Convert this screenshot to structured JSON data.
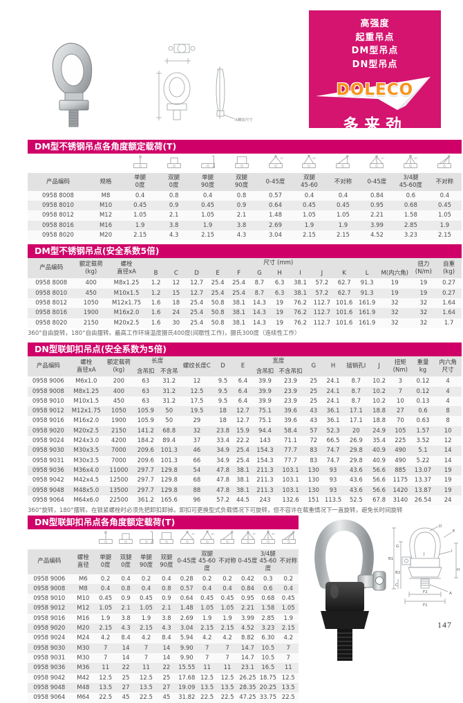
{
  "page": {
    "number": "147"
  },
  "colors": {
    "section_bar": "#cf0068",
    "panel_bg": "#d4146f",
    "logo_orange": "#f7941d",
    "logo_arrow": "#ffffff",
    "header_bg": "#e2e2e2",
    "row_stripe": "#ebebeb"
  },
  "brand": {
    "lines": [
      "高强度",
      "起重吊点",
      "DM型吊点",
      "DN型吊点"
    ],
    "logo_text": "DOLECO",
    "logo_cn": "多来劲"
  },
  "diagrams": {
    "dm": {
      "label": "A螺纹尺寸"
    },
    "dn": {
      "labels": [
        "D",
        "E",
        "G",
        "B1",
        "I",
        "B2",
        "H",
        "J",
        "C",
        "A",
        "F2",
        "F1"
      ]
    }
  },
  "tables": {
    "dm_angle": {
      "title": "DM型不锈钢吊点各角度额定载荷(T)",
      "icon_lead_cols": 2,
      "icons": [
        "sling-single-leg-0-icon",
        "sling-double-leg-0-icon",
        "sling-single-leg-90-icon",
        "sling-double-leg-90-icon",
        "sling-double-leg-0-45-icon",
        "sling-double-leg-45-60-icon",
        "sling-asymmetric-icon",
        "sling-34leg-0-45-icon",
        "sling-34leg-45-60-icon",
        "sling-34leg-asymmetric-icon"
      ],
      "widths": [
        14,
        8,
        7.8,
        7.8,
        7.8,
        7.8,
        7.8,
        7.8,
        7.8,
        7.8,
        7.8,
        7.8
      ],
      "header": [
        [
          {
            "t": "产品编码"
          },
          {
            "t": "规格"
          },
          {
            "t": "单腿\n0度"
          },
          {
            "t": "双腿\n0度"
          },
          {
            "t": "单腿\n90度"
          },
          {
            "t": "双腿\n90度"
          },
          {
            "t": "0-45度"
          },
          {
            "t": "双腿\n45-60"
          },
          {
            "t": "不对称"
          },
          {
            "t": "0-45度"
          },
          {
            "t": "3/4腿\n45-60度"
          },
          {
            "t": "不对称"
          }
        ]
      ],
      "rows": [
        [
          "0958 8008",
          "M8",
          "0.4",
          "0.8",
          "0.4",
          "0.8",
          "0.57",
          "0.4",
          "0.4",
          "0.84",
          "0.6",
          "0.4"
        ],
        [
          "0958 8010",
          "M10",
          "0.45",
          "0.9",
          "0.45",
          "0.9",
          "0.64",
          "0.45",
          "0.45",
          "0.95",
          "0.68",
          "0.45"
        ],
        [
          "0958 8012",
          "M12",
          "1.05",
          "2.1",
          "1.05",
          "2.1",
          "1.48",
          "1.05",
          "1.05",
          "2.21",
          "1.58",
          "1.05"
        ],
        [
          "0958 8016",
          "M16",
          "1.9",
          "3.8",
          "1.9",
          "3.8",
          "2.69",
          "1.9",
          "1.9",
          "3.99",
          "2.85",
          "1.9"
        ],
        [
          "0958 8020",
          "M20",
          "2.15",
          "4.3",
          "2.15",
          "4.3",
          "3.04",
          "2.15",
          "2.15",
          "4.52",
          "3.23",
          "2.15"
        ]
      ]
    },
    "dm_dims": {
      "title": "DM型不锈钢吊点(安全系数5倍)",
      "widths": [
        11,
        7.5,
        9,
        4.7,
        4.7,
        4.9,
        4.9,
        4.9,
        4.7,
        4.7,
        4.9,
        5.2,
        5.2,
        5.4,
        7.5,
        5.9,
        5.9
      ],
      "header": [
        [
          {
            "t": "产品编码",
            "rs": 2
          },
          {
            "t": "额定载荷\n(kg)",
            "rs": 2
          },
          {
            "t": "螺栓\n直径xA",
            "rs": 2
          },
          {
            "t": "尺寸 (mm)",
            "cs": 12
          },
          {
            "t": "扭力\n(N/m)",
            "rs": 2
          },
          {
            "t": "自重\n(kg)",
            "rs": 2
          }
        ],
        [
          {
            "t": "B"
          },
          {
            "t": "C"
          },
          {
            "t": "D"
          },
          {
            "t": "E"
          },
          {
            "t": "F"
          },
          {
            "t": "G"
          },
          {
            "t": "H"
          },
          {
            "t": "I"
          },
          {
            "t": "J"
          },
          {
            "t": "K"
          },
          {
            "t": "L"
          },
          {
            "t": "M(内六角)"
          }
        ]
      ],
      "rows": [
        [
          "0958 8008",
          "400",
          "M8x1.25",
          "1.2",
          "12",
          "12.7",
          "25.4",
          "25.4",
          "8.7",
          "6.3",
          "38.1",
          "57.2",
          "62.7",
          "91.3",
          "19",
          "19",
          "0.27"
        ],
        [
          "0958 8010",
          "450",
          "M10x1.5",
          "1.2",
          "15",
          "12.7",
          "25.4",
          "25.4",
          "8.7",
          "6.3",
          "38.1",
          "57.2",
          "62.7",
          "91.3",
          "19",
          "19",
          "0.27"
        ],
        [
          "0958 8012",
          "1050",
          "M12x1.75",
          "1.6",
          "18",
          "25.4",
          "50.8",
          "38.1",
          "14.3",
          "19",
          "76.2",
          "112.7",
          "101.6",
          "161.9",
          "32",
          "32",
          "1.64"
        ],
        [
          "0958 8016",
          "1900",
          "M16x2.0",
          "1.6",
          "24",
          "25.4",
          "50.8",
          "38.1",
          "14.3",
          "19",
          "76.2",
          "112.7",
          "101.6",
          "161.9",
          "32",
          "32",
          "1.64"
        ],
        [
          "0958 8020",
          "2150",
          "M20x2.5",
          "1.6",
          "30",
          "25.4",
          "50.8",
          "38.1",
          "14.3",
          "19",
          "76.2",
          "112.7",
          "101.6",
          "161.9",
          "32",
          "32",
          "1.7"
        ]
      ],
      "note": "360°自由旋转，180°自由摆转。最高工作环境温度摄氏400度(间歇性工作)，摄氏300度（连续性工作）"
    },
    "dn_dims": {
      "title": "DN型联卸扣吊点(安全系数为5倍)",
      "widths": [
        9.5,
        8,
        7,
        5.4,
        5.4,
        7.4,
        4.6,
        4.6,
        5.6,
        6.2,
        4.4,
        4.6,
        6,
        4.6,
        5.2,
        5.2,
        6.3
      ],
      "header": [
        [
          {
            "t": "产品编码",
            "rs": 2
          },
          {
            "t": "螺栓\n直径xA",
            "rs": 2
          },
          {
            "t": "额定载荷\n(kg)",
            "rs": 2
          },
          {
            "t": "长度",
            "cs": 2
          },
          {
            "t": "螺纹长度C",
            "rs": 2
          },
          {
            "t": "D",
            "rs": 2
          },
          {
            "t": "E",
            "rs": 2
          },
          {
            "t": "宽度",
            "cs": 2
          },
          {
            "t": "G",
            "rs": 2
          },
          {
            "t": "H",
            "rs": 2
          },
          {
            "t": "插销孔I",
            "rs": 2
          },
          {
            "t": "J",
            "rs": 2
          },
          {
            "t": "扭矩\n(Nm)",
            "rs": 2
          },
          {
            "t": "重量\nkg",
            "rs": 2
          },
          {
            "t": "内六角\n尺寸",
            "rs": 2
          }
        ],
        [
          {
            "t": "含吊扣"
          },
          {
            "t": "不含吊"
          },
          {
            "t": "含吊扣"
          },
          {
            "t": "不含吊扣"
          }
        ]
      ],
      "rows": [
        [
          "0958 9006",
          "M6x1.0",
          "200",
          "63",
          "31.2",
          "12",
          "9.5",
          "6.4",
          "39.9",
          "23.9",
          "25",
          "24.1",
          "8.7",
          "10.2",
          "3",
          "0.12",
          "4"
        ],
        [
          "0958 9008",
          "M8x1.25",
          "400",
          "63",
          "31.2",
          "12.5",
          "9.5",
          "6.4",
          "39.9",
          "23.9",
          "25",
          "24.1",
          "8.7",
          "10.2",
          "7",
          "0.12",
          "4"
        ],
        [
          "0958 9010",
          "M10x1.5",
          "450",
          "63",
          "31.2",
          "17.5",
          "9.5",
          "6.4",
          "39.9",
          "23.9",
          "25",
          "24.1",
          "8.7",
          "10.2",
          "10",
          "0.13",
          "4"
        ],
        [
          "0958 9012",
          "M12x1.75",
          "1050",
          "105.9",
          "50",
          "19.5",
          "18",
          "12.7",
          "75.1",
          "39.6",
          "43",
          "36.1",
          "17.1",
          "18.8",
          "27",
          "0.6",
          "8"
        ],
        [
          "0958 9016",
          "M16x2.0",
          "1900",
          "105.9",
          "50",
          "29",
          "18",
          "12.7",
          "75.1",
          "39.6",
          "43",
          "36.1",
          "17.1",
          "18.8",
          "70",
          "0.63",
          "8"
        ],
        [
          "0958 9020",
          "M20x2.5",
          "2150",
          "141.2",
          "68.8",
          "32",
          "23.8",
          "15.9",
          "94.4",
          "58.4",
          "57",
          "52.3",
          "20",
          "24.9",
          "105",
          "1.57",
          "10"
        ],
        [
          "0958 9024",
          "M24x3.0",
          "4200",
          "184.2",
          "89.4",
          "37",
          "33.4",
          "22.2",
          "143",
          "71.1",
          "72",
          "66.5",
          "26.9",
          "35.4",
          "225",
          "3.52",
          "12"
        ],
        [
          "0958 9030",
          "M30x3.5",
          "7000",
          "209.6",
          "101.3",
          "46",
          "34.9",
          "25.4",
          "154.3",
          "77.7",
          "83",
          "74.7",
          "29.8",
          "40.9",
          "490",
          "5.1",
          "14"
        ],
        [
          "0958 9031",
          "M30x3.5",
          "7000",
          "209.6",
          "101.3",
          "66",
          "34.9",
          "25.4",
          "154.3",
          "77.7",
          "83",
          "74.7",
          "29.8",
          "40.9",
          "490",
          "5.22",
          "14"
        ],
        [
          "0958 9036",
          "M36x4.0",
          "11000",
          "297.7",
          "129.8",
          "54",
          "47.8",
          "38.1",
          "211.3",
          "103.1",
          "130",
          "93",
          "43.6",
          "56.6",
          "885",
          "13.07",
          "19"
        ],
        [
          "0958 9042",
          "M42x4.5",
          "12500",
          "297.7",
          "129.8",
          "68",
          "47.8",
          "38.1",
          "211.3",
          "103.1",
          "130",
          "93",
          "43.6",
          "56.6",
          "1175",
          "13.37",
          "19"
        ],
        [
          "0958 9048",
          "M48x5.0",
          "13500",
          "297.7",
          "129.8",
          "88",
          "47.8",
          "38.1",
          "211.3",
          "103.1",
          "130",
          "93",
          "43.6",
          "56.6",
          "1420",
          "13.87",
          "19"
        ],
        [
          "0958 9064",
          "M64x6.0",
          "22500",
          "361.2",
          "165.6",
          "96",
          "57.2",
          "44.5",
          "243",
          "132.6",
          "151",
          "113.5",
          "52.5",
          "67.8",
          "3140",
          "26.54",
          "24"
        ]
      ],
      "note": "360°旋转，180°摆转。在锁紧螺栓时必须先把卸扣卸掉。卸扣可更换型式负载情况下可旋转，但不容许在载重情况下一直旋转，避免长时间旋转"
    },
    "dn_angle": {
      "title": "DN型联卸扣吊点各角度额定载荷(T)",
      "icon_lead_cols": 2,
      "icons": [
        "sling-single-leg-0-icon",
        "sling-double-leg-0-icon",
        "sling-single-leg-90-icon",
        "sling-double-leg-90-icon",
        "sling-double-leg-0-45-icon",
        "sling-double-leg-45-60-icon",
        "sling-asymmetric-icon",
        "sling-34leg-0-45-icon",
        "sling-34leg-45-60-icon",
        "sling-34leg-asymmetric-icon"
      ],
      "widths": [
        16,
        9,
        7.5,
        7.5,
        7.5,
        7.5,
        7.5,
        7.5,
        7.5,
        7.5,
        7.5,
        7.5
      ],
      "header": [
        [
          {
            "t": "产品编码"
          },
          {
            "t": "螺栓\n直径"
          },
          {
            "t": "单腿\n0度"
          },
          {
            "t": "双腿\n0度"
          },
          {
            "t": "单腿\n90度"
          },
          {
            "t": "双腿\n90度"
          },
          {
            "t": "0-45度"
          },
          {
            "t": "双腿\n45-60度"
          },
          {
            "t": "不对称"
          },
          {
            "t": "0-45度"
          },
          {
            "t": "3/4腿\n45-60度"
          },
          {
            "t": "不对称"
          }
        ]
      ],
      "rows": [
        [
          "0958 9006",
          "M6",
          "0.2",
          "0.4",
          "0.2",
          "0.4",
          "0.28",
          "0.2",
          "0.2",
          "0.42",
          "0.3",
          "0.2"
        ],
        [
          "0958 9008",
          "M8",
          "0.4",
          "0.8",
          "0.4",
          "0.8",
          "0.57",
          "0.4",
          "0.4",
          "0.84",
          "0.6",
          "0.4"
        ],
        [
          "0958 9010",
          "M10",
          "0.45",
          "0.9",
          "0.45",
          "0.9",
          "0.64",
          "0.45",
          "0.45",
          "0.95",
          "0.68",
          "0.45"
        ],
        [
          "0958 9012",
          "M12",
          "1.05",
          "2.1",
          "1.05",
          "2.1",
          "1.48",
          "1.05",
          "1.05",
          "2.21",
          "1.58",
          "1.05"
        ],
        [
          "0958 9016",
          "M16",
          "1.9",
          "3.8",
          "1.9",
          "3.8",
          "2.69",
          "1.9",
          "1.9",
          "3.99",
          "2.85",
          "1.9"
        ],
        [
          "0958 9020",
          "M20",
          "2.15",
          "4.3",
          "2.15",
          "4.3",
          "3.04",
          "2.15",
          "2.15",
          "4.52",
          "3.23",
          "2.15"
        ],
        [
          "0958 9024",
          "M24",
          "4.2",
          "8.4",
          "4.2",
          "8.4",
          "5.94",
          "4.2",
          "4.2",
          "8.82",
          "6.30",
          "4.2"
        ],
        [
          "0958 9030",
          "M30",
          "7",
          "14",
          "7",
          "14",
          "9.90",
          "7",
          "7",
          "14.7",
          "10.5",
          "7"
        ],
        [
          "0958 9031",
          "M30",
          "7",
          "14",
          "7",
          "14",
          "9.90",
          "7",
          "7",
          "14.7",
          "10.5",
          "7"
        ],
        [
          "0958 9036",
          "M36",
          "11",
          "22",
          "11",
          "22",
          "15.55",
          "11",
          "11",
          "23.1",
          "16.5",
          "11"
        ],
        [
          "0958 9042",
          "M42",
          "12.5",
          "25",
          "12.5",
          "25",
          "17.68",
          "12.5",
          "12.5",
          "26.25",
          "18.75",
          "12.5"
        ],
        [
          "0958 9048",
          "M48",
          "13.5",
          "27",
          "13.5",
          "27",
          "19.09",
          "13.5",
          "13.5",
          "28.35",
          "20.25",
          "13.5"
        ],
        [
          "0958 9064",
          "M64",
          "22.5",
          "45",
          "22.5",
          "45",
          "31.82",
          "22.5",
          "22.5",
          "47.25",
          "33.75",
          "22.5"
        ]
      ]
    }
  }
}
